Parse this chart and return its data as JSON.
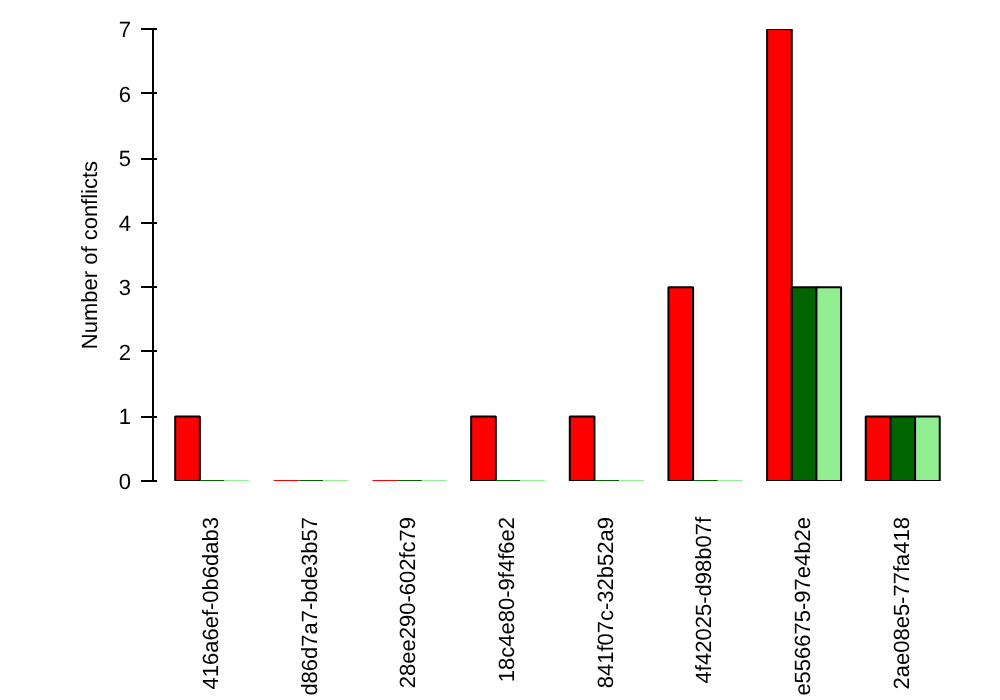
{
  "chart_data": {
    "type": "bar",
    "ylabel": "Number of conflicts",
    "categories": [
      "416a6ef-0b6dab3",
      "d86d7a7-bde3b57",
      "28ee290-602fc79",
      "18c4e80-9f4f6e2",
      "841f07c-32b52a9",
      "4f42025-d98b07f",
      "e556675-97e4b2e",
      "2ae08e5-77fa418"
    ],
    "series": [
      {
        "color": "#ff0000",
        "values": [
          1,
          0,
          0,
          1,
          1,
          3,
          7,
          1
        ]
      },
      {
        "color": "#006400",
        "values": [
          0,
          0,
          0,
          0,
          0,
          0,
          3,
          1
        ]
      },
      {
        "color": "#90ee90",
        "values": [
          0,
          0,
          0,
          0,
          0,
          0,
          3,
          1
        ]
      }
    ],
    "ylim": [
      0,
      7
    ],
    "yticks": [
      0,
      1,
      2,
      3,
      4,
      5,
      6,
      7
    ],
    "grid": false
  }
}
